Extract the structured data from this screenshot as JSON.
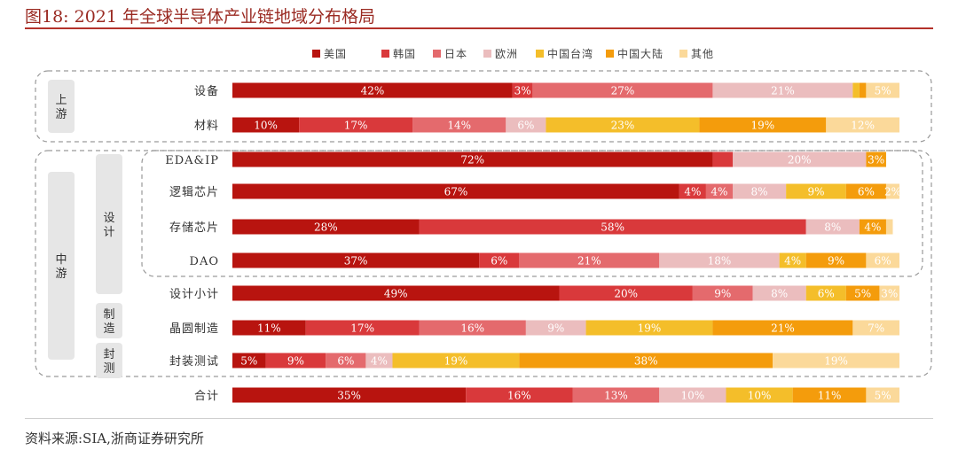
{
  "title": "图18:   2021 年全球半导体产业链地域分布格局",
  "source": "资料来源:SIA,浙商证券研究所",
  "groups": {
    "upstream": "上游",
    "midstream": "中游",
    "design": "设计",
    "fab": "制造",
    "packaging": "封测"
  },
  "colors": [
    "#b8140f",
    "#d9393b",
    "#e46a6d",
    "#ebbdbe",
    "#f4be2a",
    "#f49c0c",
    "#fbd99a"
  ],
  "chart_data": {
    "type": "bar",
    "orientation": "horizontal",
    "stacked": true,
    "xlim": [
      0,
      100
    ],
    "unit": "%",
    "legend_position": "top",
    "categories": [
      "设备",
      "材料",
      "EDA&IP",
      "逻辑芯片",
      "存储芯片",
      "DAO",
      "设计小计",
      "晶圆制造",
      "封装测试",
      "合计"
    ],
    "series": [
      {
        "name": "美国",
        "values": [
          42,
          10,
          72,
          67,
          28,
          37,
          49,
          11,
          5,
          35
        ]
      },
      {
        "name": "韩国",
        "values": [
          3,
          17,
          3,
          4,
          58,
          6,
          20,
          17,
          9,
          16
        ]
      },
      {
        "name": "日本",
        "values": [
          27,
          14,
          0,
          4,
          0,
          21,
          9,
          16,
          6,
          13
        ]
      },
      {
        "name": "欧洲",
        "values": [
          21,
          6,
          20,
          8,
          8,
          18,
          8,
          9,
          4,
          10
        ]
      },
      {
        "name": "中国台湾",
        "values": [
          1,
          23,
          0,
          9,
          0,
          4,
          6,
          19,
          19,
          10
        ]
      },
      {
        "name": "中国大陆",
        "values": [
          1,
          19,
          3,
          6,
          4,
          9,
          5,
          21,
          38,
          11
        ]
      },
      {
        "name": "其他",
        "values": [
          5,
          12,
          0,
          2,
          1,
          6,
          3,
          7,
          19,
          5
        ]
      }
    ],
    "labels": [
      [
        "42%",
        "3%",
        "27%",
        "21%",
        "",
        "",
        "5%"
      ],
      [
        "10%",
        "17%",
        "14%",
        "6%",
        "23%",
        "19%",
        "12%"
      ],
      [
        "72%",
        "",
        "",
        "20%",
        "",
        "3%",
        ""
      ],
      [
        "67%",
        "4%",
        "4%",
        "8%",
        "9%",
        "6%",
        "2%"
      ],
      [
        "28%",
        "58%",
        "",
        "8%",
        "",
        "4%",
        ""
      ],
      [
        "37%",
        "6%",
        "21%",
        "18%",
        "4%",
        "9%",
        "6%"
      ],
      [
        "49%",
        "20%",
        "9%",
        "8%",
        "6%",
        "5%",
        "3%"
      ],
      [
        "11%",
        "17%",
        "16%",
        "9%",
        "19%",
        "21%",
        "7%"
      ],
      [
        "5%",
        "9%",
        "6%",
        "4%",
        "19%",
        "38%",
        "19%"
      ],
      [
        "35%",
        "16%",
        "13%",
        "10%",
        "10%",
        "11%",
        "5%"
      ]
    ]
  }
}
